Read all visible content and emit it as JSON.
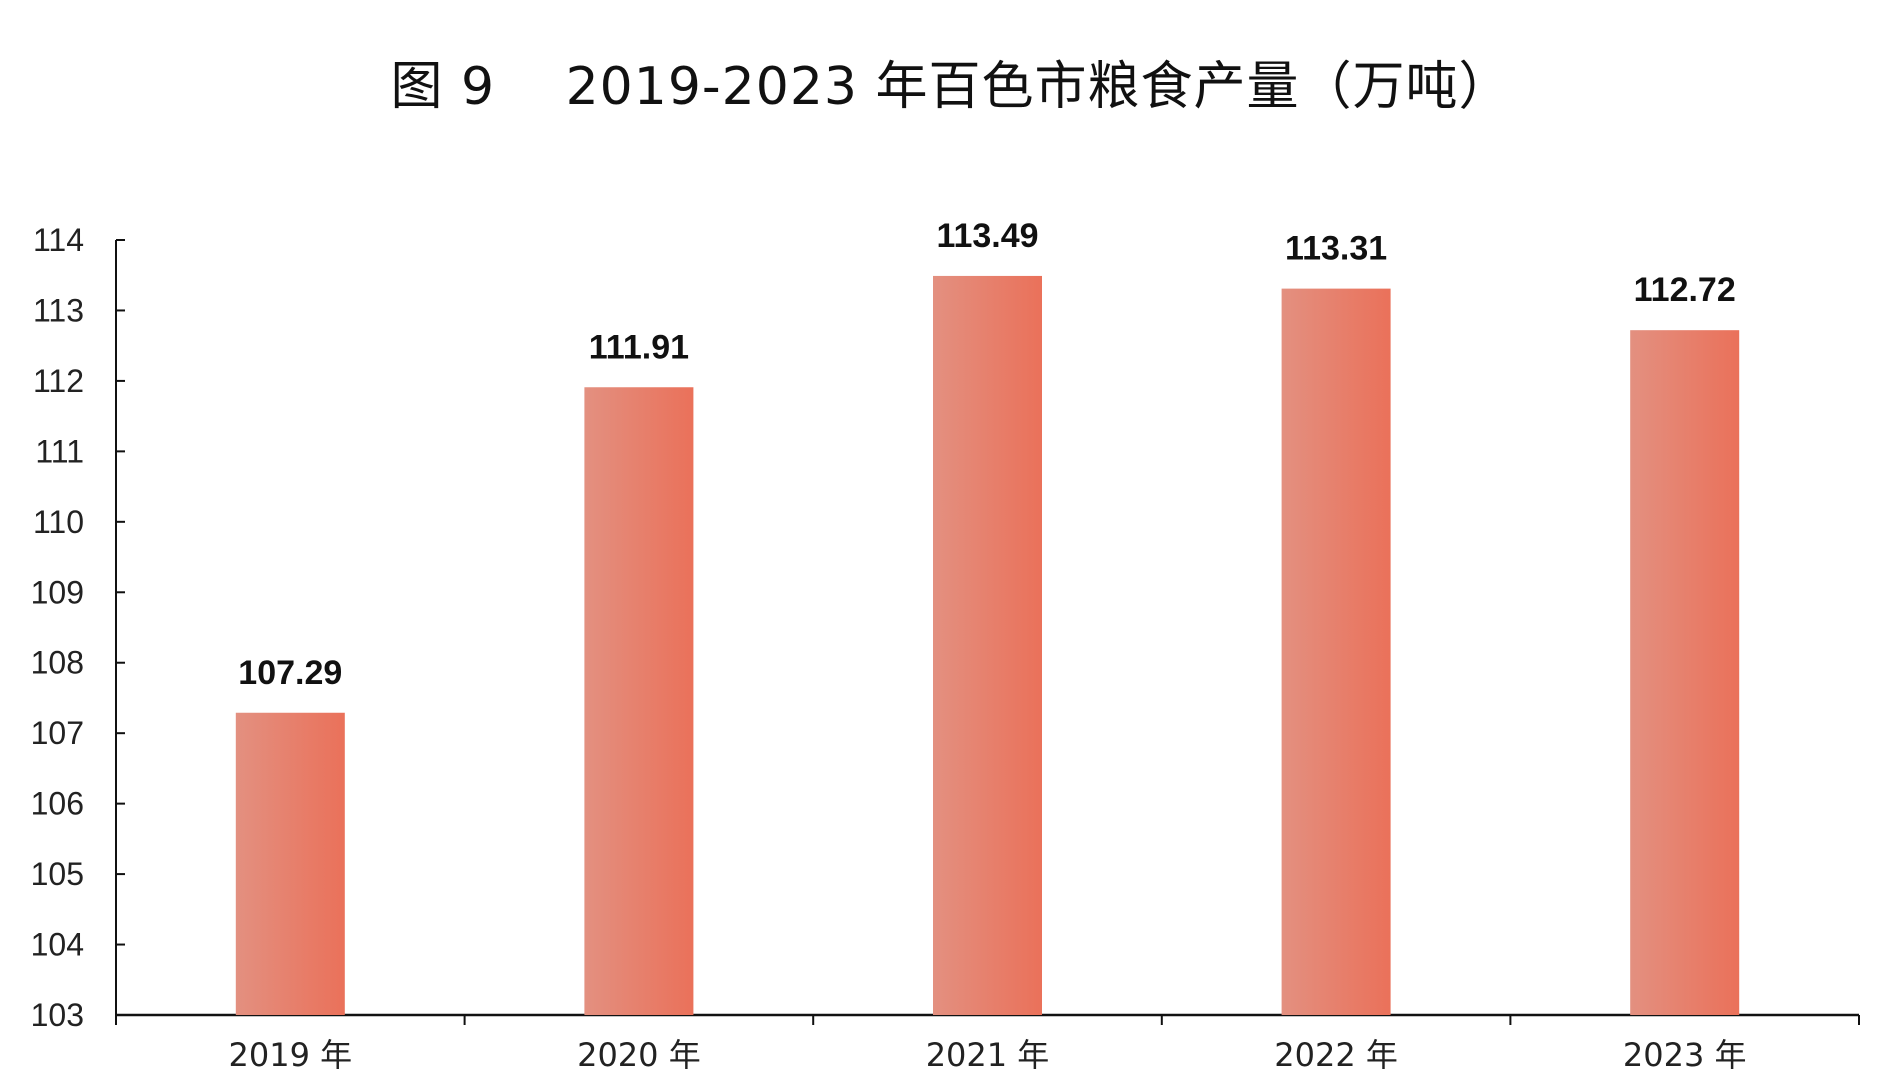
{
  "chart_data": {
    "type": "bar",
    "title": "图 9　 2019-2023 年百色市粮食产量（万吨）",
    "categories": [
      "2019 年",
      "2020 年",
      "2021 年",
      "2022 年",
      "2023 年"
    ],
    "values": [
      107.29,
      111.91,
      113.49,
      113.31,
      112.72
    ],
    "data_labels": [
      "107.29",
      "111.91",
      "113.49",
      "113.31",
      "112.72"
    ],
    "ylim": [
      103,
      114
    ],
    "yticks": [
      103,
      104,
      105,
      106,
      107,
      108,
      109,
      110,
      111,
      112,
      113,
      114
    ],
    "ytick_labels": [
      "103",
      "104",
      "105",
      "106",
      "107",
      "108",
      "109",
      "110",
      "111",
      "112",
      "113",
      "114"
    ],
    "xlabel": "",
    "ylabel": "",
    "grid": false,
    "legend": "none",
    "colors": {
      "bar_light": "#e39080",
      "bar_dark": "#ea715a",
      "axis": "#111111"
    }
  }
}
